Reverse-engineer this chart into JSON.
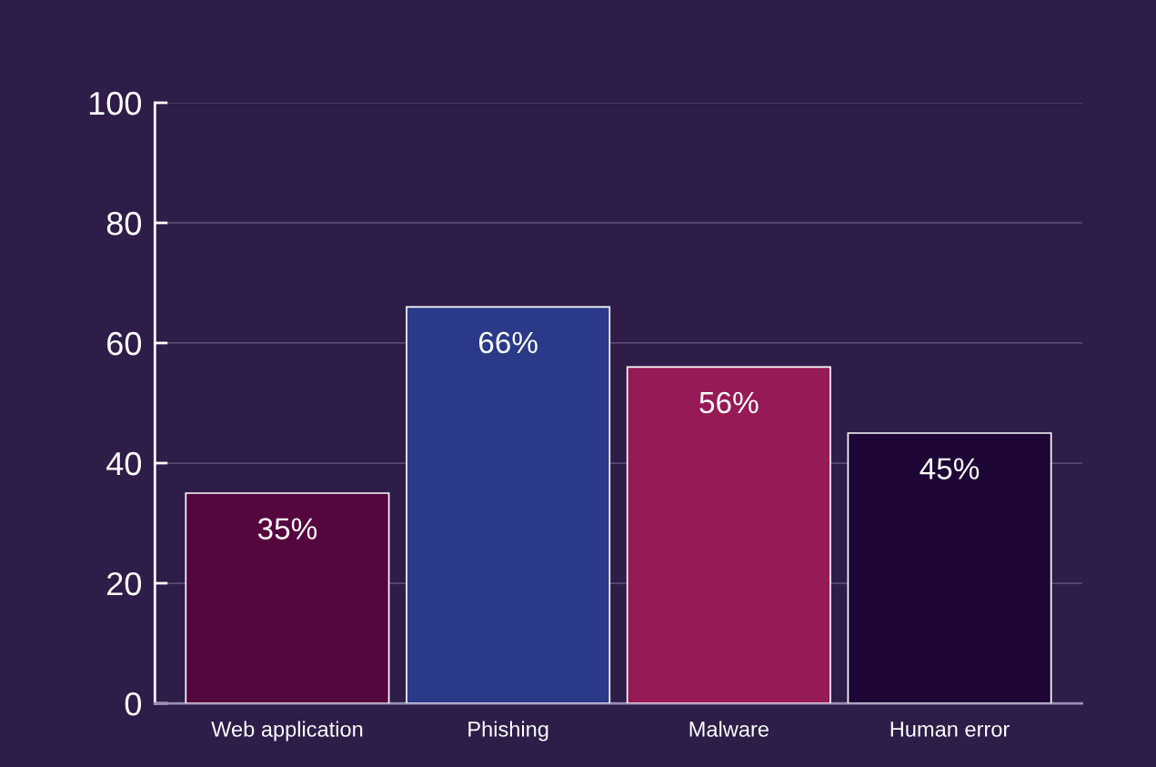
{
  "chart_data": {
    "type": "bar",
    "categories": [
      "Web application",
      "Phishing",
      "Malware",
      "Human error"
    ],
    "values": [
      35,
      66,
      56,
      45
    ],
    "colors": [
      "#55063f",
      "#2a3a88",
      "#961a55",
      "#1e0736"
    ],
    "value_labels": [
      "35%",
      "66%",
      "56%",
      "45%"
    ],
    "ylim": [
      0,
      100
    ],
    "yticks": [
      0,
      20,
      40,
      60,
      80,
      100
    ],
    "grid": "y"
  }
}
